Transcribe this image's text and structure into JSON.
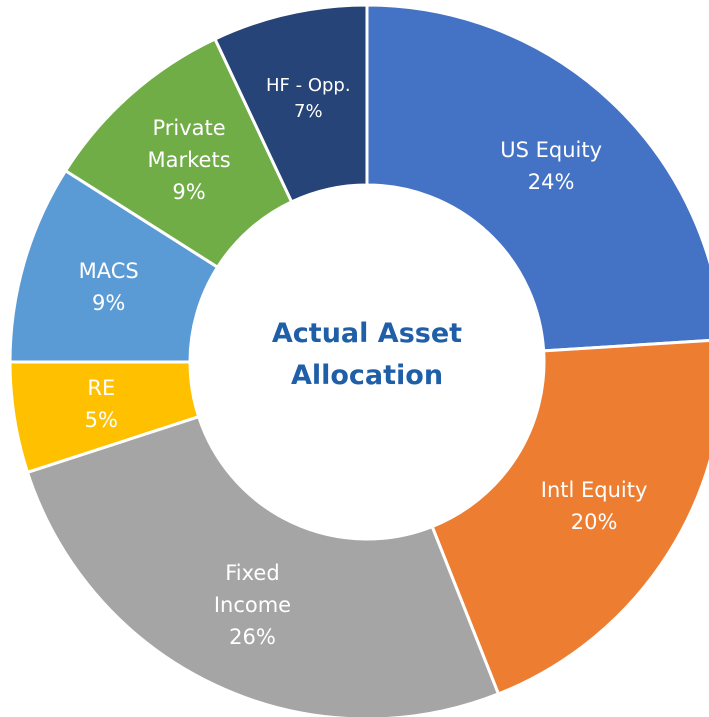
{
  "chart_data": {
    "type": "donut",
    "title": "Actual Asset Allocation",
    "categories": [
      "US Equity",
      "Intl Equity",
      "Fixed Income",
      "RE",
      "MACS",
      "Private Markets",
      "HF - Opp."
    ],
    "values": [
      24,
      20,
      26,
      5,
      9,
      9,
      7
    ],
    "value_labels": [
      "24%",
      "20%",
      "26%",
      "5%",
      "9%",
      "9%",
      "7%"
    ],
    "colors": [
      "#4472c4",
      "#ed7d31",
      "#a5a5a5",
      "#ffc000",
      "#5b9bd5",
      "#70ad47",
      "#264478"
    ]
  }
}
